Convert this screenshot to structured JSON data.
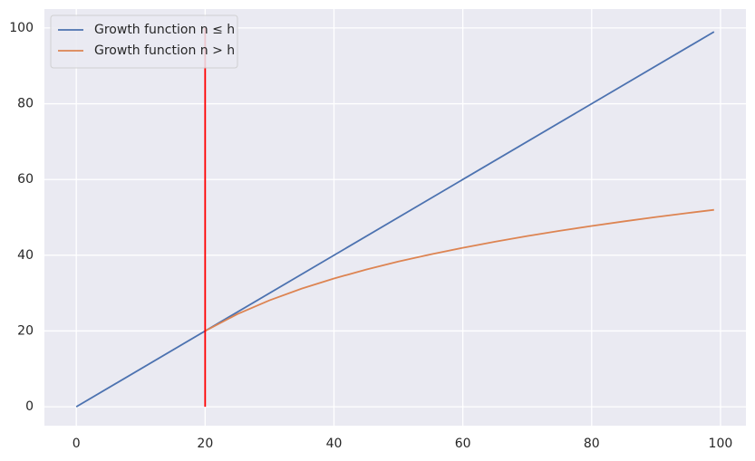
{
  "chart_data": {
    "type": "line",
    "series": [
      {
        "name": "Growth function n ≤ h",
        "color": "#4c72b0",
        "x": [
          0,
          99
        ],
        "values": [
          0,
          99
        ]
      },
      {
        "name": "Growth function n > h",
        "color": "#dd8452",
        "x": [
          20,
          25,
          30,
          35,
          40,
          45,
          50,
          55,
          60,
          65,
          70,
          75,
          80,
          85,
          90,
          95,
          99
        ],
        "values": [
          20,
          24.46,
          28.11,
          31.19,
          33.86,
          36.22,
          38.33,
          40.23,
          41.97,
          43.57,
          45.06,
          46.44,
          47.73,
          48.94,
          50.08,
          51.16,
          51.99
        ]
      },
      {
        "color": "#ff0000",
        "x": [
          20,
          20
        ],
        "values": [
          0,
          100
        ]
      }
    ],
    "xlim": [
      -4.95,
      103.95
    ],
    "xticks": [
      0,
      20,
      40,
      60,
      80,
      100
    ],
    "ylim": [
      -5,
      105
    ],
    "yticks": [
      0,
      20,
      40,
      60,
      80,
      100
    ],
    "grid": true,
    "legend": "upper-left"
  }
}
